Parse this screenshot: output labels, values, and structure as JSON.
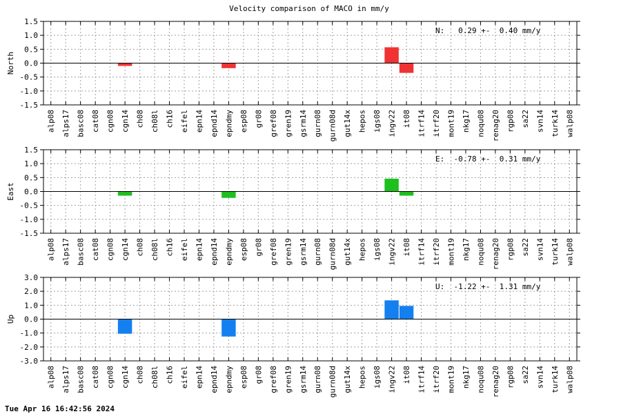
{
  "title": "Velocity comparison of MACO in mm/y",
  "footer": "Tue Apr 16 16:42:56 2024",
  "chart_data": [
    {
      "type": "bar",
      "ylabel": "North",
      "ylim": [
        -1.5,
        1.5
      ],
      "yticks": [
        "1.5",
        "1.0",
        "0.5",
        "0.0",
        "-0.5",
        "-1.0",
        "-1.5"
      ],
      "ytick_values": [
        1.5,
        1.0,
        0.5,
        0.0,
        -0.5,
        -1.0,
        -1.5
      ],
      "annotation": "N:   0.29 +-  0.40 mm/y",
      "color": "#f03232",
      "grid": true,
      "categories": [
        "alp08",
        "alps17",
        "basc08",
        "cat08",
        "cgn08",
        "cgn14",
        "ch08",
        "ch08l",
        "ch16",
        "eifel",
        "epn14",
        "epnd14",
        "epndmy",
        "esp08",
        "gr08",
        "gref08",
        "gren19",
        "gsrm14",
        "gurn08",
        "gurn08d",
        "gut14x",
        "hepos",
        "igs08",
        "ingv22",
        "it08",
        "itrf14",
        "itrf20",
        "mont19",
        "nkg17",
        "noqu08",
        "renag20",
        "rgp08",
        "sa22",
        "svn14",
        "turk14",
        "walp08"
      ],
      "values": [
        null,
        null,
        null,
        null,
        null,
        -0.1,
        null,
        null,
        null,
        null,
        null,
        null,
        -0.18,
        null,
        null,
        null,
        null,
        null,
        null,
        null,
        null,
        null,
        null,
        0.57,
        -0.35,
        null,
        null,
        null,
        null,
        null,
        null,
        null,
        null,
        null,
        null,
        null
      ]
    },
    {
      "type": "bar",
      "ylabel": "East",
      "ylim": [
        -1.5,
        1.5
      ],
      "yticks": [
        "1.5",
        "1.0",
        "0.5",
        "0.0",
        "-0.5",
        "-1.0",
        "-1.5"
      ],
      "ytick_values": [
        1.5,
        1.0,
        0.5,
        0.0,
        -0.5,
        -1.0,
        -1.5
      ],
      "annotation": "E:  -0.78 +-  0.31 mm/y",
      "color": "#1ec01e",
      "grid": true,
      "categories": [
        "alp08",
        "alps17",
        "basc08",
        "cat08",
        "cgn08",
        "cgn14",
        "ch08",
        "ch08l",
        "ch16",
        "eifel",
        "epn14",
        "epnd14",
        "epndmy",
        "esp08",
        "gr08",
        "gref08",
        "gren19",
        "gsrm14",
        "gurn08",
        "gurn08d",
        "gut14x",
        "hepos",
        "igs08",
        "ingv22",
        "it08",
        "itrf14",
        "itrf20",
        "mont19",
        "nkg17",
        "noqu08",
        "renag20",
        "rgp08",
        "sa22",
        "svn14",
        "turk14",
        "walp08"
      ],
      "values": [
        null,
        null,
        null,
        null,
        null,
        -0.15,
        null,
        null,
        null,
        null,
        null,
        null,
        -0.23,
        null,
        null,
        null,
        null,
        null,
        null,
        null,
        null,
        null,
        null,
        0.46,
        -0.15,
        null,
        null,
        null,
        null,
        null,
        null,
        null,
        null,
        null,
        null,
        null
      ]
    },
    {
      "type": "bar",
      "ylabel": "Up",
      "ylim": [
        -3.0,
        3.0
      ],
      "yticks": [
        "3.0",
        "2.0",
        "1.0",
        "0.0",
        "-1.0",
        "-2.0",
        "-3.0"
      ],
      "ytick_values": [
        3.0,
        2.0,
        1.0,
        0.0,
        -1.0,
        -2.0,
        -3.0
      ],
      "annotation": "U:  -1.22 +-  1.31 mm/y",
      "color": "#1480f0",
      "grid": true,
      "categories": [
        "alp08",
        "alps17",
        "basc08",
        "cat08",
        "cgn08",
        "cgn14",
        "ch08",
        "ch08l",
        "ch16",
        "eifel",
        "epn14",
        "epnd14",
        "epndmy",
        "esp08",
        "gr08",
        "gref08",
        "gren19",
        "gsrm14",
        "gurn08",
        "gurn08d",
        "gut14x",
        "hepos",
        "igs08",
        "ingv22",
        "it08",
        "itrf14",
        "itrf20",
        "mont19",
        "nkg17",
        "noqu08",
        "renag20",
        "rgp08",
        "sa22",
        "svn14",
        "turk14",
        "walp08"
      ],
      "values": [
        null,
        null,
        null,
        null,
        null,
        -1.05,
        null,
        null,
        null,
        null,
        null,
        null,
        -1.25,
        null,
        null,
        null,
        null,
        null,
        null,
        null,
        null,
        null,
        null,
        1.35,
        0.95,
        null,
        null,
        null,
        null,
        null,
        null,
        null,
        null,
        null,
        null,
        null
      ]
    }
  ]
}
